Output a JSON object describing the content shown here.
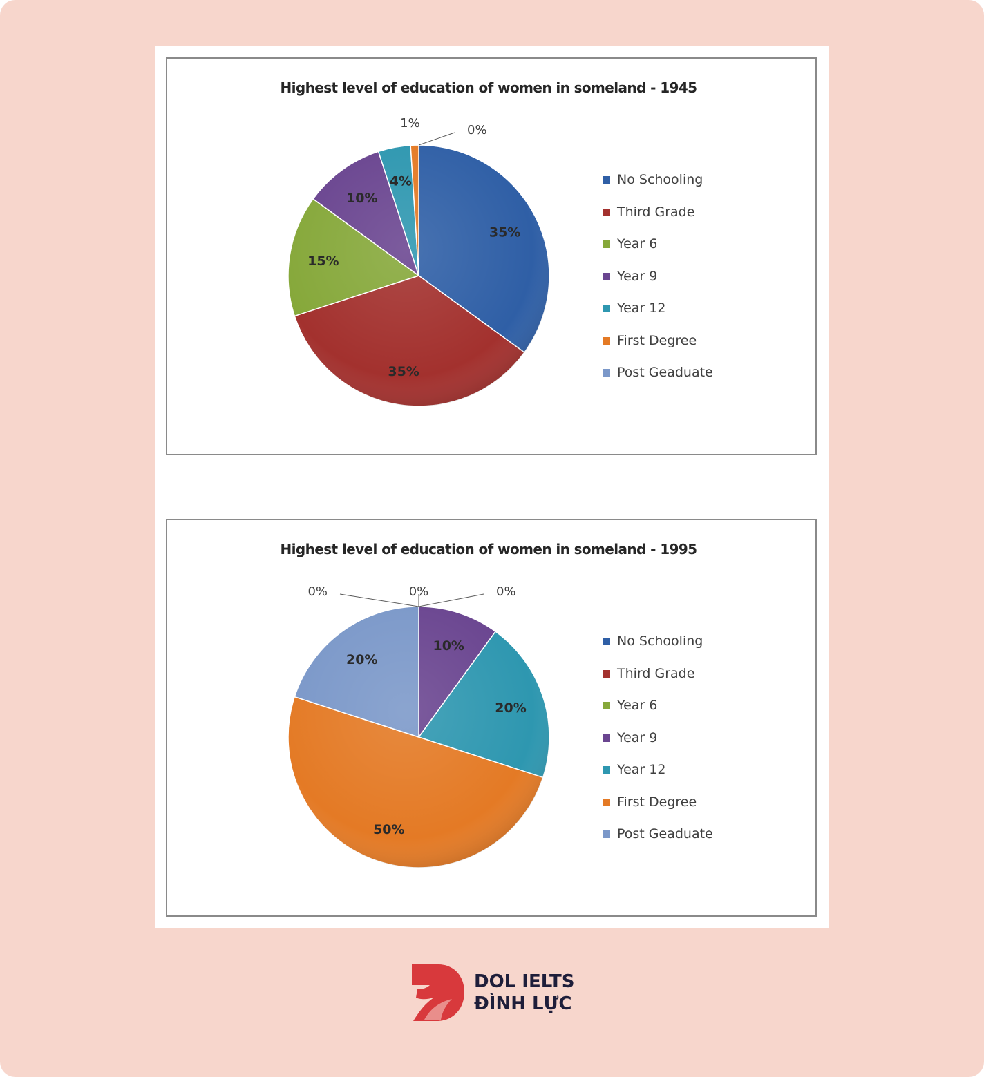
{
  "chart_data": [
    {
      "type": "pie",
      "title": "Highest level of education of women in someland - 1945",
      "categories": [
        "No Schooling",
        "Third Grade",
        "Year 6",
        "Year 9",
        "Year 12",
        "First Degree",
        "Post Geaduate"
      ],
      "values": [
        35,
        35,
        15,
        10,
        4,
        1,
        0
      ],
      "data_labels": [
        "35%",
        "35%",
        "15%",
        "10%",
        "4%",
        "1%",
        "0%"
      ],
      "legend_position": "right"
    },
    {
      "type": "pie",
      "title": "Highest level of education of women in someland - 1995",
      "categories": [
        "No Schooling",
        "Third Grade",
        "Year 6",
        "Year 9",
        "Year 12",
        "First Degree",
        "Post Geaduate"
      ],
      "values": [
        0,
        0,
        0,
        10,
        20,
        50,
        20
      ],
      "data_labels": [
        "0%",
        "0%",
        "0%",
        "10%",
        "20%",
        "50%",
        "20%"
      ],
      "legend_position": "right"
    }
  ],
  "colors": {
    "No Schooling": "#2f5fa6",
    "Third Grade": "#a3312e",
    "Year 6": "#86a83a",
    "Year 9": "#6a4590",
    "Year 12": "#2e97b0",
    "First Degree": "#e47a25",
    "Post Geaduate": "#7b98c9"
  },
  "brand": {
    "line1": "DOL IELTS",
    "line2": "ĐÌNH LỰC",
    "color": "#d8393c"
  }
}
